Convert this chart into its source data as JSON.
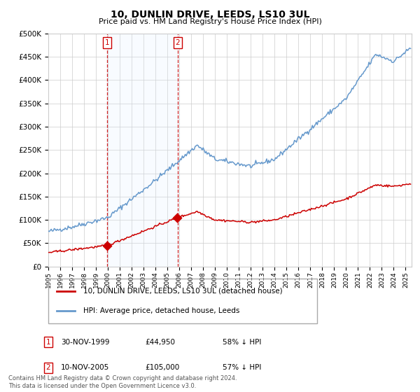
{
  "title": "10, DUNLIN DRIVE, LEEDS, LS10 3UL",
  "subtitle": "Price paid vs. HM Land Registry's House Price Index (HPI)",
  "ytick_values": [
    0,
    50000,
    100000,
    150000,
    200000,
    250000,
    300000,
    350000,
    400000,
    450000,
    500000
  ],
  "ylim": [
    0,
    500000
  ],
  "xlim_start": 1995.0,
  "xlim_end": 2025.5,
  "sale1_date": 1999.92,
  "sale1_price": 44950,
  "sale2_date": 2005.87,
  "sale2_price": 105000,
  "sale1_text": "30-NOV-1999",
  "sale1_price_text": "£44,950",
  "sale1_hpi_text": "58% ↓ HPI",
  "sale2_text": "10-NOV-2005",
  "sale2_price_text": "£105,000",
  "sale2_hpi_text": "57% ↓ HPI",
  "line_property_color": "#cc0000",
  "line_hpi_color": "#6699cc",
  "legend_property_label": "10, DUNLIN DRIVE, LEEDS, LS10 3UL (detached house)",
  "legend_hpi_label": "HPI: Average price, detached house, Leeds",
  "footnote": "Contains HM Land Registry data © Crown copyright and database right 2024.\nThis data is licensed under the Open Government Licence v3.0.",
  "background_color": "#ffffff",
  "grid_color": "#cccccc",
  "shade_color": "#ddeeff"
}
